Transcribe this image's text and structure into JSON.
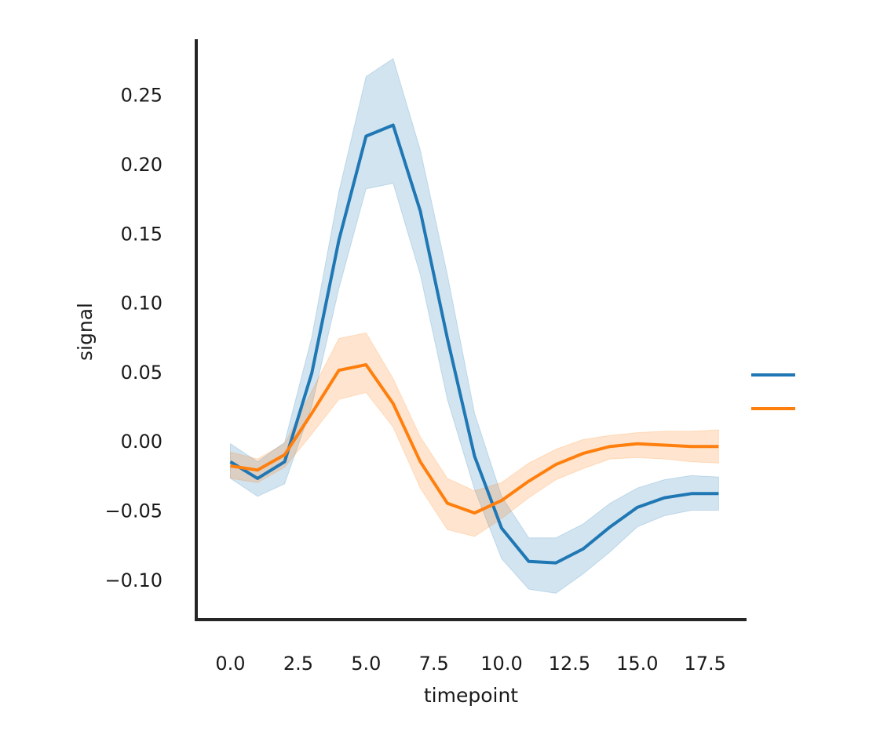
{
  "chart_data": {
    "type": "line",
    "xlabel": "timepoint",
    "ylabel": "signal",
    "xlim": [
      -1.26,
      19.0
    ],
    "ylim": [
      -0.129,
      0.29
    ],
    "xticks": [
      0.0,
      2.5,
      5.0,
      7.5,
      10.0,
      12.5,
      15.0,
      17.5
    ],
    "xtick_labels": [
      "0.0",
      "2.5",
      "5.0",
      "7.5",
      "10.0",
      "12.5",
      "15.0",
      "17.5"
    ],
    "yticks": [
      -0.1,
      -0.05,
      0.0,
      0.05,
      0.1,
      0.15,
      0.2,
      0.25
    ],
    "ytick_labels": [
      "−0.10",
      "−0.05",
      "0.00",
      "0.05",
      "0.10",
      "0.15",
      "0.20",
      "0.25"
    ],
    "grid": false,
    "legend_position": "right",
    "x": [
      0,
      1,
      2,
      3,
      4,
      5,
      6,
      7,
      8,
      9,
      10,
      11,
      12,
      13,
      14,
      15,
      16,
      17,
      18
    ],
    "series": [
      {
        "color": "#1f77b4",
        "band_color": "#1f77b4",
        "values": [
          -0.015,
          -0.027,
          -0.015,
          0.049,
          0.145,
          0.22,
          0.228,
          0.166,
          0.074,
          -0.011,
          -0.063,
          -0.087,
          -0.088,
          -0.078,
          -0.062,
          -0.048,
          -0.041,
          -0.038,
          -0.038
        ],
        "ci_low": [
          -0.027,
          -0.04,
          -0.031,
          0.025,
          0.11,
          0.182,
          0.186,
          0.12,
          0.03,
          -0.035,
          -0.085,
          -0.107,
          -0.11,
          -0.096,
          -0.08,
          -0.062,
          -0.054,
          -0.05,
          -0.05
        ],
        "ci_high": [
          -0.002,
          -0.015,
          -0.001,
          0.075,
          0.18,
          0.263,
          0.276,
          0.21,
          0.12,
          0.02,
          -0.04,
          -0.07,
          -0.07,
          -0.06,
          -0.045,
          -0.034,
          -0.028,
          -0.025,
          -0.026
        ]
      },
      {
        "color": "#ff7f0e",
        "band_color": "#ff7f0e",
        "values": [
          -0.018,
          -0.021,
          -0.01,
          0.02,
          0.051,
          0.055,
          0.027,
          -0.015,
          -0.045,
          -0.052,
          -0.043,
          -0.029,
          -0.017,
          -0.009,
          -0.004,
          -0.002,
          -0.003,
          -0.004,
          -0.004
        ],
        "ci_low": [
          -0.027,
          -0.03,
          -0.019,
          0.005,
          0.03,
          0.035,
          0.01,
          -0.034,
          -0.064,
          -0.069,
          -0.056,
          -0.041,
          -0.028,
          -0.02,
          -0.013,
          -0.012,
          -0.013,
          -0.015,
          -0.016
        ],
        "ci_high": [
          -0.008,
          -0.013,
          -0.002,
          0.036,
          0.074,
          0.078,
          0.045,
          0.003,
          -0.027,
          -0.036,
          -0.03,
          -0.016,
          -0.006,
          0.001,
          0.004,
          0.006,
          0.007,
          0.007,
          0.008
        ]
      }
    ]
  }
}
